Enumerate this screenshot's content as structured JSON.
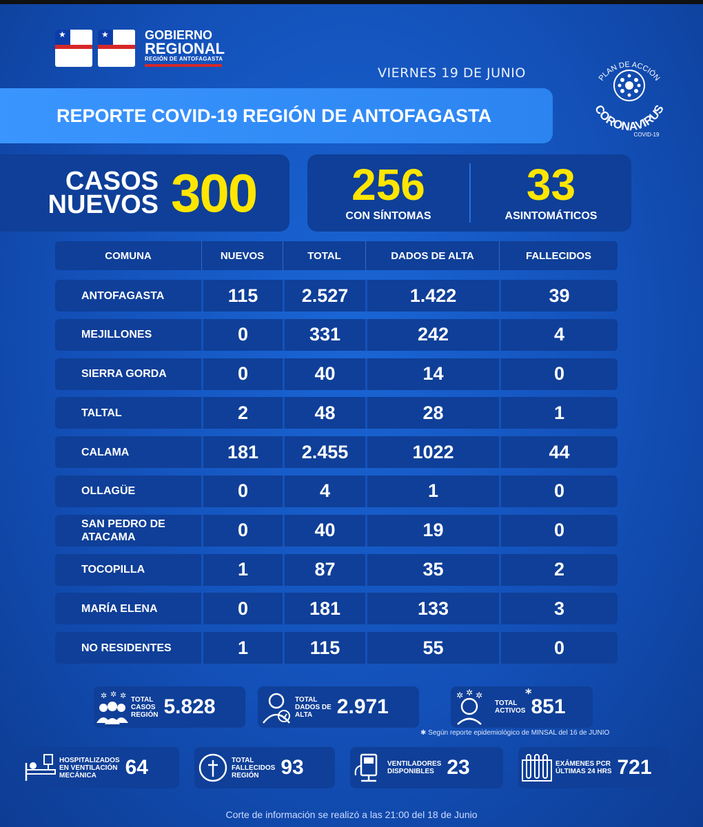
{
  "header": {
    "gov_line1": "GOBIERNO",
    "gov_line2": "REGIONAL",
    "gov_line3": "REGIÓN DE ANTOFAGASTA",
    "date": "VIERNES 19 DE JUNIO",
    "title": "REPORTE COVID-19 REGIÓN DE ANTOFAGASTA",
    "badge_top": "PLAN DE ACCIÓN",
    "badge_main": "CORONAVIRUS",
    "badge_sub": "COVID-19"
  },
  "stats": {
    "casos_label_1": "CASOS",
    "casos_label_2": "NUEVOS",
    "casos_value": "300",
    "sintomas_value": "256",
    "sintomas_label": "CON SÍNTOMAS",
    "asint_value": "33",
    "asint_label": "ASINTOMÁTICOS"
  },
  "table": {
    "headers": [
      "COMUNA",
      "NUEVOS",
      "TOTAL",
      "DADOS DE ALTA",
      "FALLECIDOS"
    ],
    "rows": [
      {
        "comuna": "ANTOFAGASTA",
        "comuna2": "",
        "nuevos": "115",
        "total": "2.527",
        "alta": "1.422",
        "fallecidos": "39"
      },
      {
        "comuna": "MEJILLONES",
        "comuna2": "",
        "nuevos": "0",
        "total": "331",
        "alta": "242",
        "fallecidos": "4"
      },
      {
        "comuna": "SIERRA GORDA",
        "comuna2": "",
        "nuevos": "0",
        "total": "40",
        "alta": "14",
        "fallecidos": "0"
      },
      {
        "comuna": "TALTAL",
        "comuna2": "",
        "nuevos": "2",
        "total": "48",
        "alta": "28",
        "fallecidos": "1"
      },
      {
        "comuna": "CALAMA",
        "comuna2": "",
        "nuevos": "181",
        "total": "2.455",
        "alta": "1022",
        "fallecidos": "44"
      },
      {
        "comuna": "OLLAGÜE",
        "comuna2": "",
        "nuevos": "0",
        "total": "4",
        "alta": "1",
        "fallecidos": "0"
      },
      {
        "comuna": "SAN PEDRO DE",
        "comuna2": "ATACAMA",
        "nuevos": "0",
        "total": "40",
        "alta": "19",
        "fallecidos": "0"
      },
      {
        "comuna": "TOCOPILLA",
        "comuna2": "",
        "nuevos": "1",
        "total": "87",
        "alta": "35",
        "fallecidos": "2"
      },
      {
        "comuna": "MARÍA ELENA",
        "comuna2": "",
        "nuevos": "0",
        "total": "181",
        "alta": "133",
        "fallecidos": "3"
      },
      {
        "comuna": "NO RESIDENTES",
        "comuna2": "",
        "nuevos": "1",
        "total": "115",
        "alta": "55",
        "fallecidos": "0"
      }
    ]
  },
  "summary": {
    "total_casos": {
      "l1": "TOTAL",
      "l2": "CASOS",
      "l3": "REGIÓN",
      "value": "5.828"
    },
    "total_alta": {
      "l1": "TOTAL",
      "l2": "DADOS DE",
      "l3": "ALTA",
      "value": "2.971"
    },
    "total_activos": {
      "l1": "TOTAL",
      "l2": "ACTIVOS",
      "asterisk": "*",
      "value": "851"
    },
    "note": "✱ Según reporte epidemiológico de MINSAL del 16 de JUNIO",
    "hospitalizados": {
      "l1": "HOSPITALIZADOS",
      "l2": "EN VENTILACIÓN",
      "l3": "MECÁNICA",
      "value": "64"
    },
    "fallecidos": {
      "l1": "TOTAL",
      "l2": "FALLECIDOS",
      "l3": "REGIÓN",
      "value": "93"
    },
    "ventiladores": {
      "l1": "VENTILADORES",
      "l2": "DISPONIBLES",
      "value": "23"
    },
    "examenes": {
      "l1": "EXÁMENES PCR",
      "l2": "ÚLTIMAS 24 HRS",
      "value": "721"
    }
  },
  "footer": "Corte de información se realizó a las 21:00 del 18 de Junio",
  "colors": {
    "accent_yellow": "#ffe600",
    "panel": "#0f3f98",
    "banner": "#3a95ff",
    "red": "#d62828"
  }
}
